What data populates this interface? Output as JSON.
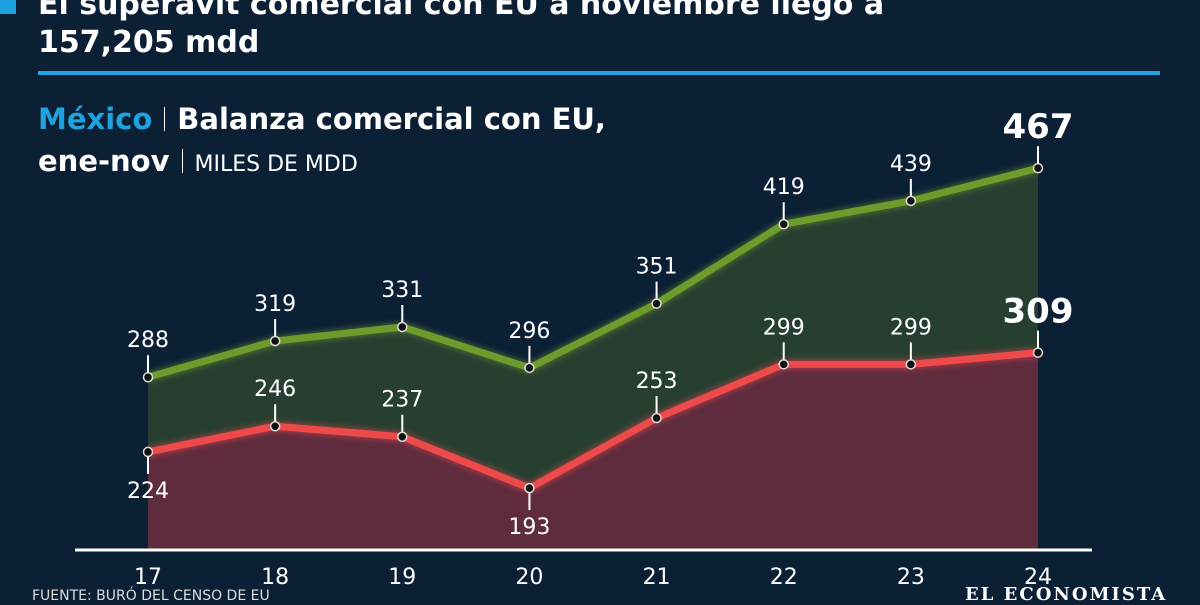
{
  "header": {
    "title": "El superávit comercial con EU a noviembre llegó a 157,205 mdd"
  },
  "subtitle": {
    "country": "México",
    "title": "Balanza comercial con EU, ene-nov",
    "units": "MILES DE MDD"
  },
  "chart_data": {
    "type": "area",
    "categories": [
      "17",
      "18",
      "19",
      "20",
      "21",
      "22",
      "23",
      "24"
    ],
    "series": [
      {
        "color": "#6e9c2c",
        "fill": "#273f31",
        "values": [
          288,
          319,
          331,
          296,
          351,
          419,
          439,
          467
        ]
      },
      {
        "color": "#ee4a4c",
        "fill": "#5f2c3e",
        "values": [
          224,
          246,
          237,
          193,
          253,
          299,
          299,
          309
        ]
      }
    ],
    "ylim": [
      140,
      480
    ]
  },
  "footer": {
    "source": "FUENTE: BURÓ DEL CENSO DE EU",
    "logo": "EL ECONOMISTA"
  }
}
